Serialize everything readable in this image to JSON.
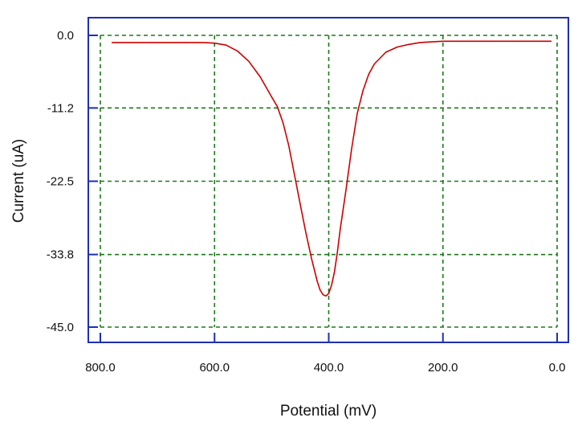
{
  "chart_data": {
    "type": "line",
    "title": "",
    "xlabel": "Potential (mV)",
    "ylabel": "Current (uA)",
    "xlim": [
      800,
      0
    ],
    "ylim": [
      -45,
      0
    ],
    "x_ticks": [
      "800.0",
      "600.0",
      "400.0",
      "200.0",
      "0.0"
    ],
    "y_ticks": [
      "0.0",
      "-11.2",
      "-22.5",
      "-33.8",
      "-45.0"
    ],
    "grid": true,
    "legend": "none",
    "colors": {
      "frame": "#1f2fb4",
      "grid": "#1a7a1a",
      "line": "#cc0000"
    },
    "series": [
      {
        "x": [
          780,
          700,
          620,
          600,
          580,
          560,
          540,
          520,
          500,
          490,
          480,
          470,
          460,
          450,
          440,
          430,
          420,
          415,
          410,
          405,
          400,
          395,
          390,
          385,
          380,
          370,
          360,
          350,
          340,
          330,
          320,
          300,
          280,
          260,
          240,
          220,
          200,
          150,
          100,
          50,
          10
        ],
        "y": [
          -1.1,
          -1.1,
          -1.1,
          -1.2,
          -1.5,
          -2.4,
          -4.0,
          -6.4,
          -9.5,
          -11.0,
          -13.5,
          -17.0,
          -21.5,
          -26.0,
          -30.5,
          -34.5,
          -38.0,
          -39.3,
          -40.0,
          -40.2,
          -39.8,
          -38.5,
          -36.5,
          -33.5,
          -30.0,
          -24.0,
          -17.5,
          -12.0,
          -8.5,
          -6.0,
          -4.4,
          -2.6,
          -1.8,
          -1.4,
          -1.1,
          -1.0,
          -0.9,
          -0.9,
          -0.9,
          -0.9,
          -0.9
        ]
      }
    ]
  }
}
